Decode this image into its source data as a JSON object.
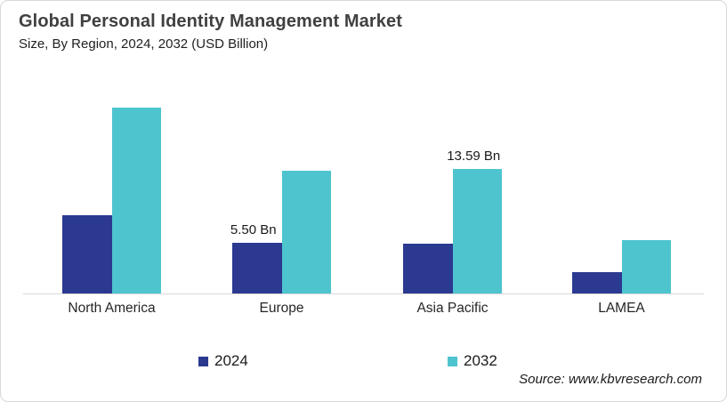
{
  "header": {
    "title": "Global Personal Identity Management Market",
    "subtitle": "Size, By Region, 2024, 2032 (USD Billion)"
  },
  "source_text": "Source: www.kbvresearch.com",
  "colors": {
    "series_2024": "#2B3990",
    "series_2032": "#4EC4CF",
    "axis_line": "#D9D9D9",
    "title_text": "#404040",
    "body_text": "#1F1F1F",
    "card_border": "#D8D8D8"
  },
  "legend": {
    "items": [
      {
        "label": "2024",
        "color": "#2B3990"
      },
      {
        "label": "2032",
        "color": "#4EC4CF"
      }
    ]
  },
  "chart_data": {
    "type": "bar",
    "title": "Global Personal Identity Management Market",
    "subtitle": "Size, By Region, 2024, 2032 (USD Billion)",
    "unit": "USD Billion",
    "xlabel": "",
    "ylabel": "",
    "categories": [
      "North America",
      "Europe",
      "Asia Pacific",
      "LAMEA"
    ],
    "series": [
      {
        "name": "2024",
        "color": "#2B3990",
        "values": [
          8.5,
          5.5,
          5.4,
          2.3
        ]
      },
      {
        "name": "2032",
        "color": "#4EC4CF",
        "values": [
          20.2,
          13.4,
          13.59,
          5.8
        ]
      }
    ],
    "data_labels": [
      {
        "category_index": 1,
        "series_index": 0,
        "text": "5.50 Bn"
      },
      {
        "category_index": 2,
        "series_index": 1,
        "text": "13.59 Bn"
      }
    ],
    "ylim": [
      0,
      21
    ],
    "grid": false,
    "axis": "baseline-only",
    "legend_position": "bottom"
  }
}
